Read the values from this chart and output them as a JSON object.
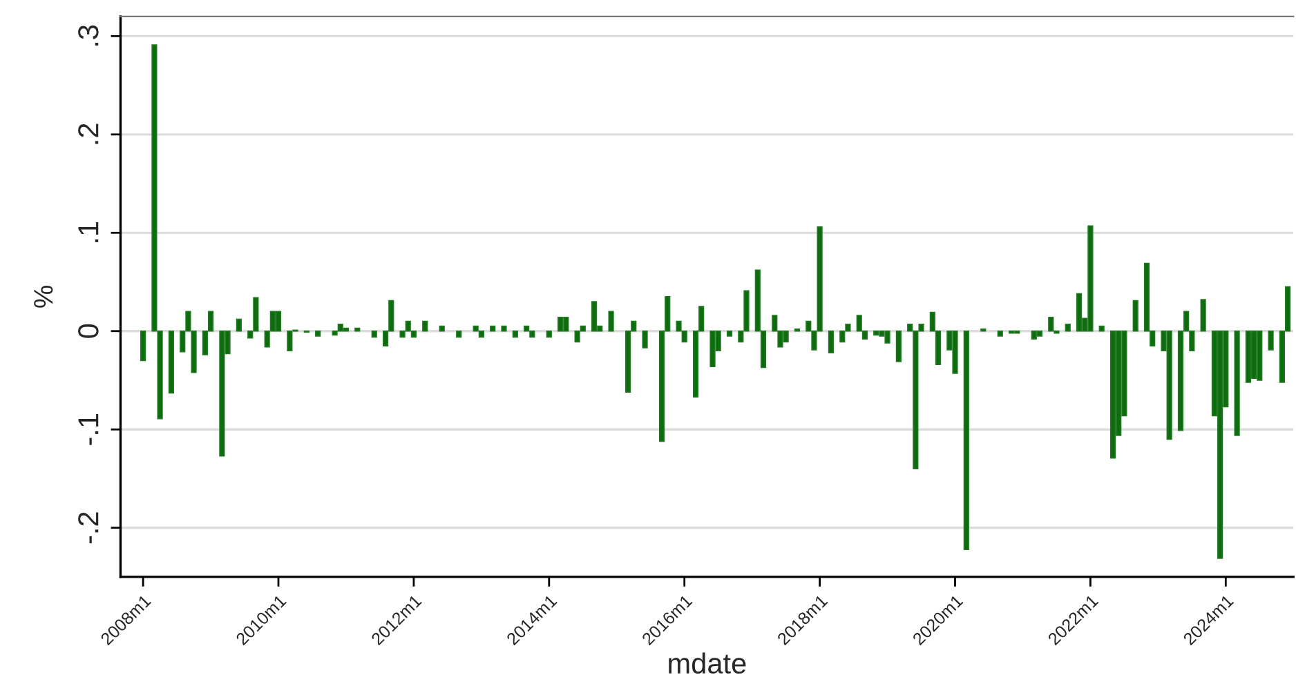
{
  "chart_data": {
    "type": "bar",
    "xlabel": "mdate",
    "ylabel": "%",
    "color": "#0f6b0f",
    "grid": "y",
    "legend": false,
    "x": [
      "2008-01",
      "2008-03",
      "2008-04",
      "2008-06",
      "2008-08",
      "2008-09",
      "2008-10",
      "2008-12",
      "2009-01",
      "2009-03",
      "2009-04",
      "2009-06",
      "2009-08",
      "2009-09",
      "2009-11",
      "2009-12",
      "2010-01",
      "2010-03",
      "2010-04",
      "2010-06",
      "2010-08",
      "2010-11",
      "2010-12",
      "2011-01",
      "2011-03",
      "2011-06",
      "2011-08",
      "2011-09",
      "2011-11",
      "2011-12",
      "2012-01",
      "2012-03",
      "2012-06",
      "2012-09",
      "2012-12",
      "2013-01",
      "2013-03",
      "2013-05",
      "2013-07",
      "2013-09",
      "2013-10",
      "2014-01",
      "2014-03",
      "2014-04",
      "2014-06",
      "2014-07",
      "2014-09",
      "2014-10",
      "2014-12",
      "2015-03",
      "2015-04",
      "2015-06",
      "2015-09",
      "2015-10",
      "2015-12",
      "2016-01",
      "2016-03",
      "2016-04",
      "2016-06",
      "2016-07",
      "2016-09",
      "2016-11",
      "2016-12",
      "2017-02",
      "2017-03",
      "2017-05",
      "2017-06",
      "2017-07",
      "2017-09",
      "2017-11",
      "2017-12",
      "2018-01",
      "2018-03",
      "2018-05",
      "2018-06",
      "2018-08",
      "2018-09",
      "2018-11",
      "2018-12",
      "2019-01",
      "2019-03",
      "2019-05",
      "2019-06",
      "2019-07",
      "2019-09",
      "2019-10",
      "2019-12",
      "2020-01",
      "2020-03",
      "2020-06",
      "2020-09",
      "2020-11",
      "2020-12",
      "2021-03",
      "2021-04",
      "2021-06",
      "2021-07",
      "2021-09",
      "2021-11",
      "2021-12",
      "2022-01",
      "2022-03",
      "2022-05",
      "2022-06",
      "2022-07",
      "2022-09",
      "2022-11",
      "2022-12",
      "2023-02",
      "2023-03",
      "2023-05",
      "2023-06",
      "2023-07",
      "2023-09",
      "2023-11",
      "2023-12",
      "2024-01",
      "2024-03",
      "2024-05",
      "2024-06",
      "2024-07",
      "2024-09",
      "2024-11",
      "2024-12"
    ],
    "values": [
      -0.03,
      0.291,
      -0.089,
      -0.063,
      -0.021,
      0.02,
      -0.042,
      -0.024,
      0.02,
      -0.127,
      -0.023,
      0.012,
      -0.007,
      0.034,
      -0.016,
      0.02,
      0.02,
      -0.02,
      0.001,
      -0.001,
      -0.005,
      -0.004,
      0.007,
      0.003,
      0.003,
      -0.006,
      -0.015,
      0.031,
      -0.006,
      0.01,
      -0.006,
      0.01,
      0.005,
      -0.006,
      0.005,
      -0.006,
      0.005,
      0.005,
      -0.006,
      0.005,
      -0.006,
      -0.006,
      0.014,
      0.014,
      -0.011,
      0.005,
      0.03,
      0.005,
      0.02,
      -0.062,
      0.01,
      -0.017,
      -0.112,
      0.035,
      0.01,
      -0.011,
      -0.067,
      0.025,
      -0.036,
      -0.02,
      -0.005,
      -0.011,
      0.041,
      0.062,
      -0.037,
      0.016,
      -0.016,
      -0.011,
      0.002,
      0.01,
      -0.019,
      0.106,
      -0.022,
      -0.011,
      0.007,
      0.016,
      -0.008,
      -0.004,
      -0.005,
      -0.012,
      -0.031,
      0.007,
      -0.14,
      0.007,
      0.019,
      -0.034,
      -0.019,
      -0.043,
      -0.222,
      0.002,
      -0.005,
      -0.002,
      -0.002,
      -0.008,
      -0.005,
      0.014,
      -0.002,
      0.007,
      0.038,
      0.013,
      0.107,
      0.005,
      -0.129,
      -0.106,
      -0.086,
      0.031,
      0.069,
      -0.015,
      -0.02,
      -0.11,
      -0.101,
      0.02,
      -0.02,
      0.032,
      -0.086,
      -0.231,
      -0.077,
      -0.106,
      -0.052,
      -0.048,
      -0.05,
      -0.019,
      -0.052,
      0.045
    ],
    "xlim": [
      "2007-09",
      "2025-01"
    ],
    "xticks": [
      {
        "value": "2008-01",
        "label": "2008m1"
      },
      {
        "value": "2010-01",
        "label": "2010m1"
      },
      {
        "value": "2012-01",
        "label": "2012m1"
      },
      {
        "value": "2014-01",
        "label": "2014m1"
      },
      {
        "value": "2016-01",
        "label": "2016m1"
      },
      {
        "value": "2018-01",
        "label": "2018m1"
      },
      {
        "value": "2020-01",
        "label": "2020m1"
      },
      {
        "value": "2022-01",
        "label": "2022m1"
      },
      {
        "value": "2024-01",
        "label": "2024m1"
      }
    ],
    "ylim": [
      -0.25,
      0.32
    ],
    "yticks": [
      {
        "value": -0.2,
        "label": "-.2"
      },
      {
        "value": -0.1,
        "label": "-.1"
      },
      {
        "value": 0,
        "label": "0"
      },
      {
        "value": 0.1,
        "label": ".1"
      },
      {
        "value": 0.2,
        "label": ".2"
      },
      {
        "value": 0.3,
        "label": ".3"
      }
    ]
  }
}
